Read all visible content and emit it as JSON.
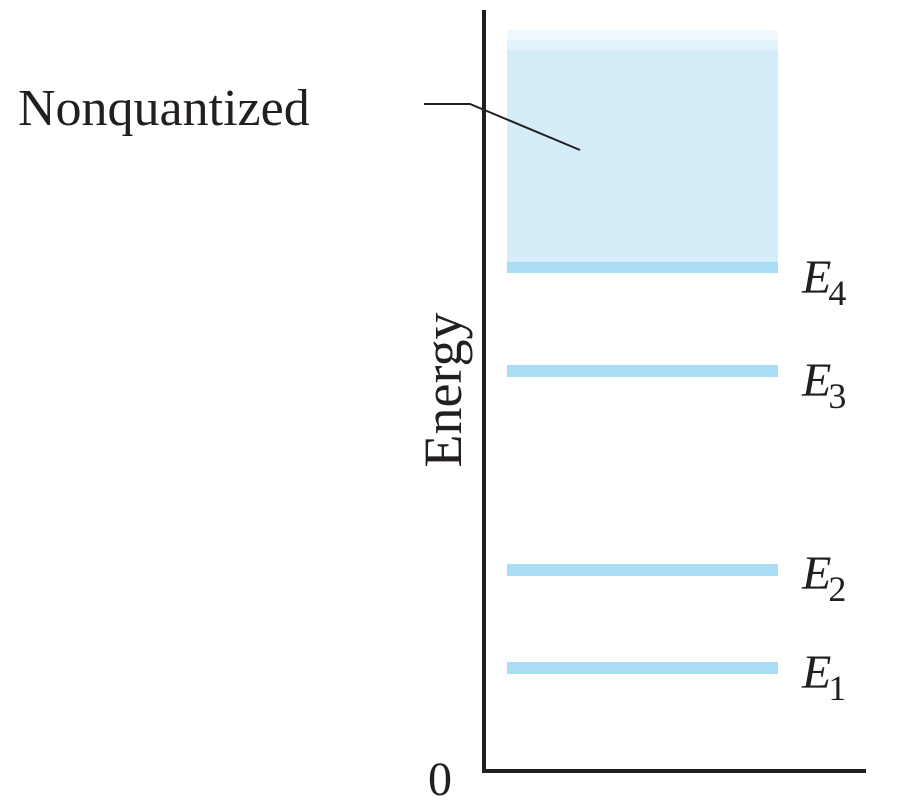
{
  "diagram": {
    "axis_label": "Energy",
    "origin_label": "0",
    "continuum_label": "Nonquantized",
    "levels": [
      {
        "symbol": "E",
        "subscript": "4"
      },
      {
        "symbol": "E",
        "subscript": "3"
      },
      {
        "symbol": "E",
        "subscript": "2"
      },
      {
        "symbol": "E",
        "subscript": "1"
      }
    ]
  },
  "colors": {
    "level_fill": "#a9ddf4",
    "continuum_fill": "#d4edf9",
    "ink": "#231f20"
  }
}
